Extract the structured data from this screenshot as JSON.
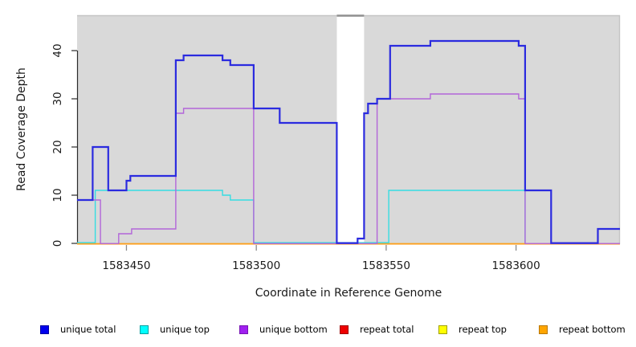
{
  "figure": {
    "plot_bg_color": "#d9d9d9",
    "border_color": "#c4c4c4",
    "gap_cap_color": "#8f8f8f",
    "axis_line_color": "#2b2b2b",
    "x_tick_color": "#8a8a8a",
    "text_color": "#1a1a1a"
  },
  "legend": {
    "items": [
      {
        "label": "unique total",
        "fill": "#0000ee",
        "border": "#0000a0"
      },
      {
        "label": "unique top",
        "fill": "#00ffff",
        "border": "#00a0a0"
      },
      {
        "label": "unique bottom",
        "fill": "#a020f0",
        "border": "#7714b3"
      },
      {
        "label": "repeat total",
        "fill": "#ee0000",
        "border": "#a00000"
      },
      {
        "label": "repeat top",
        "fill": "#ffff00",
        "border": "#a0a000"
      },
      {
        "label": "repeat bottom",
        "fill": "#ffa500",
        "border": "#b87700"
      }
    ]
  },
  "chart_data": {
    "type": "line",
    "subtype": "step-coverage",
    "title": "",
    "xlabel": "Coordinate in Reference Genome",
    "ylabel": "Read Coverage Depth",
    "x_range": [
      1583431,
      1583640
    ],
    "y_range": [
      0,
      47.3
    ],
    "x_ticks": [
      1583450,
      1583500,
      1583550,
      1583600
    ],
    "y_ticks": [
      0,
      10,
      20,
      30,
      40
    ],
    "grid": false,
    "legend_position": "bottom",
    "gap_region": {
      "x_start": 1583531,
      "x_end": 1583541.5
    },
    "series": [
      {
        "name": "repeat total",
        "color": "#e03030",
        "width": 1.2,
        "zero_offset": 0.4,
        "points": [
          [
            1583431,
            0
          ],
          [
            1583640,
            0
          ]
        ]
      },
      {
        "name": "repeat top",
        "color": "#f2ef3a",
        "width": 1.2,
        "zero_offset": 0.4,
        "points": [
          [
            1583431,
            0
          ],
          [
            1583640,
            0
          ]
        ]
      },
      {
        "name": "repeat bottom",
        "color": "#ff9e1b",
        "width": 1.7,
        "zero_offset": 0.7,
        "points": [
          [
            1583431,
            0
          ],
          [
            1583640,
            0
          ]
        ]
      },
      {
        "name": "unique top",
        "color": "#35dde2",
        "width": 1.4,
        "zero_offset": -0.9,
        "points": [
          [
            1583431,
            0
          ],
          [
            1583438,
            0
          ],
          [
            1583438,
            11
          ],
          [
            1583487,
            11
          ],
          [
            1583487,
            10
          ],
          [
            1583490,
            10
          ],
          [
            1583490,
            9
          ],
          [
            1583499,
            9
          ],
          [
            1583499,
            0
          ],
          [
            1583551,
            0
          ],
          [
            1583551,
            11
          ],
          [
            1583603.5,
            11
          ],
          [
            1583603.5,
            0
          ]
        ]
      },
      {
        "name": "unique bottom",
        "color": "#b266d9",
        "width": 1.4,
        "zero_offset": 0.2,
        "points": [
          [
            1583431,
            9
          ],
          [
            1583440,
            9
          ],
          [
            1583440,
            0
          ],
          [
            1583447,
            0
          ],
          [
            1583447,
            2
          ],
          [
            1583452,
            2
          ],
          [
            1583452,
            3
          ],
          [
            1583469,
            3
          ],
          [
            1583469,
            27
          ],
          [
            1583472,
            27
          ],
          [
            1583472,
            28
          ],
          [
            1583499,
            28
          ],
          [
            1583499,
            0
          ],
          [
            1583546.5,
            0
          ],
          [
            1583546.5,
            30
          ],
          [
            1583567,
            30
          ],
          [
            1583567,
            31
          ],
          [
            1583601,
            31
          ],
          [
            1583601,
            30
          ],
          [
            1583603.5,
            30
          ],
          [
            1583603.5,
            0
          ],
          [
            1583640,
            0
          ]
        ]
      },
      {
        "name": "unique total",
        "color": "#2b2bdf",
        "width": 2.2,
        "zero_offset": -0.4,
        "points": [
          [
            1583431,
            9
          ],
          [
            1583437,
            9
          ],
          [
            1583437,
            20
          ],
          [
            1583443,
            20
          ],
          [
            1583443,
            11
          ],
          [
            1583450,
            11
          ],
          [
            1583450,
            13
          ],
          [
            1583451.5,
            13
          ],
          [
            1583451.5,
            14
          ],
          [
            1583469,
            14
          ],
          [
            1583469,
            38
          ],
          [
            1583472,
            38
          ],
          [
            1583472,
            39
          ],
          [
            1583487,
            39
          ],
          [
            1583487,
            38
          ],
          [
            1583490,
            38
          ],
          [
            1583490,
            37
          ],
          [
            1583499,
            37
          ],
          [
            1583499,
            28
          ],
          [
            1583509,
            28
          ],
          [
            1583509,
            25
          ],
          [
            1583531,
            25
          ],
          [
            1583531,
            0
          ],
          [
            1583539,
            0
          ],
          [
            1583539,
            1
          ],
          [
            1583541.5,
            1
          ],
          [
            1583541.5,
            27
          ],
          [
            1583543,
            27
          ],
          [
            1583543,
            29
          ],
          [
            1583546.5,
            29
          ],
          [
            1583546.5,
            30
          ],
          [
            1583551.5,
            30
          ],
          [
            1583551.5,
            41
          ],
          [
            1583567,
            41
          ],
          [
            1583567,
            42
          ],
          [
            1583601,
            42
          ],
          [
            1583601,
            41
          ],
          [
            1583603.5,
            41
          ],
          [
            1583603.5,
            11
          ],
          [
            1583613.5,
            11
          ],
          [
            1583613.5,
            0
          ],
          [
            1583631.5,
            0
          ],
          [
            1583631.5,
            3
          ],
          [
            1583640,
            3
          ]
        ]
      }
    ]
  }
}
